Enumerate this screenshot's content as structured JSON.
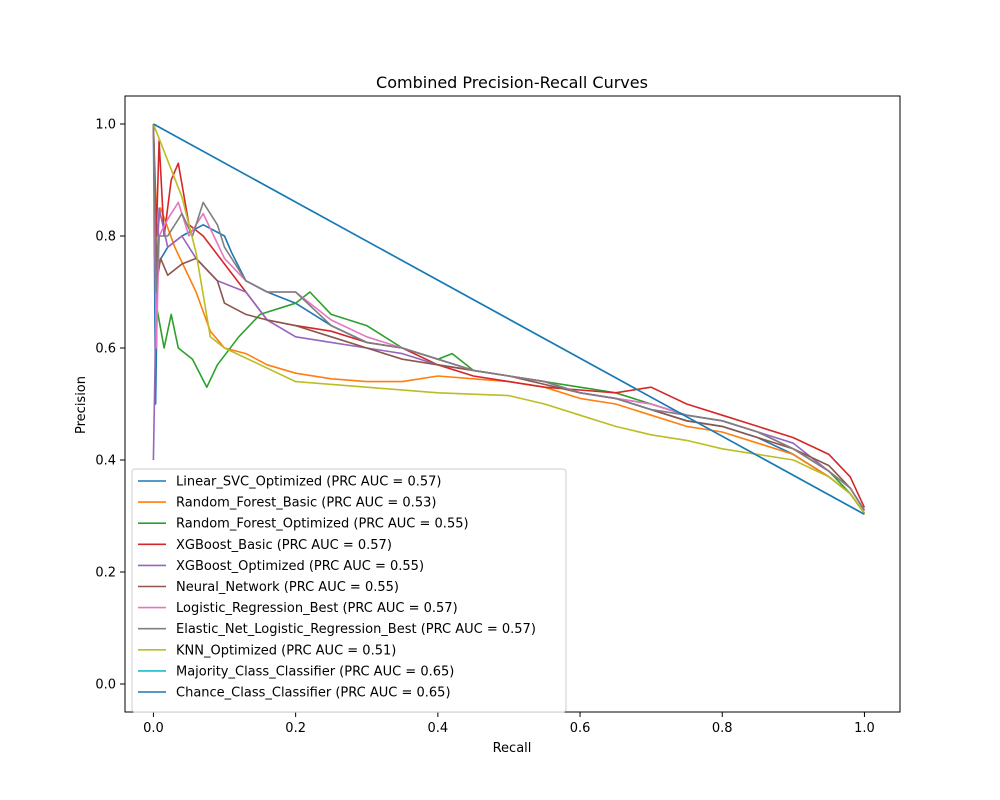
{
  "chart_data": {
    "type": "line",
    "title": "Combined Precision-Recall Curves",
    "xlabel": "Recall",
    "ylabel": "Precision",
    "xlim": [
      -0.04,
      1.05
    ],
    "ylim": [
      -0.05,
      1.05
    ],
    "xticks": [
      0.0,
      0.2,
      0.4,
      0.6,
      0.8,
      1.0
    ],
    "xtick_labels": [
      "0.0",
      "0.2",
      "0.4",
      "0.6",
      "0.8",
      "1.0"
    ],
    "yticks": [
      0.0,
      0.2,
      0.4,
      0.6,
      0.8,
      1.0
    ],
    "ytick_labels": [
      "0.0",
      "0.2",
      "0.4",
      "0.6",
      "0.8",
      "1.0"
    ],
    "grid": false,
    "legend_position": "lower-left",
    "series": [
      {
        "name": "Linear_SVC_Optimized (PRC AUC = 0.57)",
        "color": "#1f77b4",
        "points": [
          [
            0.0,
            1.0
          ],
          [
            0.003,
            0.5
          ],
          [
            0.006,
            0.75
          ],
          [
            0.02,
            0.78
          ],
          [
            0.04,
            0.8
          ],
          [
            0.07,
            0.82
          ],
          [
            0.1,
            0.8
          ],
          [
            0.11,
            0.77
          ],
          [
            0.13,
            0.72
          ],
          [
            0.16,
            0.7
          ],
          [
            0.2,
            0.68
          ],
          [
            0.25,
            0.64
          ],
          [
            0.3,
            0.61
          ],
          [
            0.35,
            0.6
          ],
          [
            0.4,
            0.58
          ],
          [
            0.45,
            0.56
          ],
          [
            0.5,
            0.55
          ],
          [
            0.55,
            0.54
          ],
          [
            0.6,
            0.52
          ],
          [
            0.65,
            0.51
          ],
          [
            0.7,
            0.49
          ],
          [
            0.75,
            0.47
          ],
          [
            0.8,
            0.46
          ],
          [
            0.85,
            0.44
          ],
          [
            0.9,
            0.41
          ],
          [
            0.95,
            0.37
          ],
          [
            0.98,
            0.34
          ],
          [
            1.0,
            0.305
          ]
        ]
      },
      {
        "name": "Random_Forest_Basic (PRC AUC = 0.53)",
        "color": "#ff7f0e",
        "points": [
          [
            0.0,
            1.0
          ],
          [
            0.005,
            0.8
          ],
          [
            0.01,
            0.85
          ],
          [
            0.03,
            0.78
          ],
          [
            0.06,
            0.7
          ],
          [
            0.08,
            0.63
          ],
          [
            0.1,
            0.6
          ],
          [
            0.13,
            0.59
          ],
          [
            0.16,
            0.57
          ],
          [
            0.2,
            0.555
          ],
          [
            0.25,
            0.545
          ],
          [
            0.3,
            0.54
          ],
          [
            0.35,
            0.54
          ],
          [
            0.4,
            0.55
          ],
          [
            0.45,
            0.545
          ],
          [
            0.5,
            0.54
          ],
          [
            0.55,
            0.53
          ],
          [
            0.6,
            0.51
          ],
          [
            0.65,
            0.5
          ],
          [
            0.7,
            0.48
          ],
          [
            0.75,
            0.46
          ],
          [
            0.8,
            0.45
          ],
          [
            0.85,
            0.43
          ],
          [
            0.9,
            0.41
          ],
          [
            0.95,
            0.37
          ],
          [
            0.98,
            0.34
          ],
          [
            1.0,
            0.305
          ]
        ]
      },
      {
        "name": "Random_Forest_Optimized (PRC AUC = 0.55)",
        "color": "#2ca02c",
        "points": [
          [
            0.0,
            1.0
          ],
          [
            0.005,
            0.67
          ],
          [
            0.015,
            0.6
          ],
          [
            0.025,
            0.66
          ],
          [
            0.035,
            0.6
          ],
          [
            0.055,
            0.58
          ],
          [
            0.075,
            0.53
          ],
          [
            0.09,
            0.57
          ],
          [
            0.12,
            0.62
          ],
          [
            0.15,
            0.66
          ],
          [
            0.2,
            0.68
          ],
          [
            0.22,
            0.7
          ],
          [
            0.25,
            0.66
          ],
          [
            0.3,
            0.64
          ],
          [
            0.35,
            0.6
          ],
          [
            0.4,
            0.58
          ],
          [
            0.42,
            0.59
          ],
          [
            0.45,
            0.56
          ],
          [
            0.5,
            0.55
          ],
          [
            0.55,
            0.54
          ],
          [
            0.6,
            0.53
          ],
          [
            0.65,
            0.52
          ],
          [
            0.7,
            0.5
          ],
          [
            0.75,
            0.48
          ],
          [
            0.8,
            0.47
          ],
          [
            0.85,
            0.45
          ],
          [
            0.9,
            0.42
          ],
          [
            0.95,
            0.38
          ],
          [
            0.98,
            0.34
          ],
          [
            1.0,
            0.305
          ]
        ]
      },
      {
        "name": "XGBoost_Basic (PRC AUC = 0.57)",
        "color": "#d62728",
        "points": [
          [
            0.0,
            1.0
          ],
          [
            0.004,
            0.8
          ],
          [
            0.008,
            0.97
          ],
          [
            0.015,
            0.8
          ],
          [
            0.025,
            0.9
          ],
          [
            0.035,
            0.93
          ],
          [
            0.05,
            0.82
          ],
          [
            0.07,
            0.8
          ],
          [
            0.1,
            0.75
          ],
          [
            0.13,
            0.7
          ],
          [
            0.16,
            0.65
          ],
          [
            0.2,
            0.64
          ],
          [
            0.25,
            0.63
          ],
          [
            0.3,
            0.61
          ],
          [
            0.35,
            0.6
          ],
          [
            0.4,
            0.57
          ],
          [
            0.45,
            0.55
          ],
          [
            0.5,
            0.54
          ],
          [
            0.55,
            0.53
          ],
          [
            0.6,
            0.525
          ],
          [
            0.65,
            0.52
          ],
          [
            0.7,
            0.53
          ],
          [
            0.75,
            0.5
          ],
          [
            0.8,
            0.48
          ],
          [
            0.85,
            0.46
          ],
          [
            0.9,
            0.44
          ],
          [
            0.95,
            0.41
          ],
          [
            0.98,
            0.37
          ],
          [
            1.0,
            0.315
          ]
        ]
      },
      {
        "name": "XGBoost_Optimized (PRC AUC = 0.55)",
        "color": "#9467bd",
        "points": [
          [
            0.0,
            0.4
          ],
          [
            0.004,
            0.7
          ],
          [
            0.008,
            0.85
          ],
          [
            0.02,
            0.78
          ],
          [
            0.04,
            0.8
          ],
          [
            0.06,
            0.76
          ],
          [
            0.09,
            0.72
          ],
          [
            0.13,
            0.7
          ],
          [
            0.16,
            0.65
          ],
          [
            0.2,
            0.62
          ],
          [
            0.25,
            0.61
          ],
          [
            0.3,
            0.6
          ],
          [
            0.35,
            0.59
          ],
          [
            0.4,
            0.57
          ],
          [
            0.45,
            0.56
          ],
          [
            0.5,
            0.55
          ],
          [
            0.55,
            0.54
          ],
          [
            0.6,
            0.52
          ],
          [
            0.65,
            0.51
          ],
          [
            0.7,
            0.5
          ],
          [
            0.75,
            0.48
          ],
          [
            0.8,
            0.47
          ],
          [
            0.85,
            0.45
          ],
          [
            0.9,
            0.43
          ],
          [
            0.95,
            0.38
          ],
          [
            0.98,
            0.35
          ],
          [
            1.0,
            0.31
          ]
        ]
      },
      {
        "name": "Neural_Network (PRC AUC = 0.55)",
        "color": "#8c564b",
        "points": [
          [
            0.0,
            1.0
          ],
          [
            0.005,
            0.72
          ],
          [
            0.01,
            0.76
          ],
          [
            0.02,
            0.73
          ],
          [
            0.04,
            0.75
          ],
          [
            0.06,
            0.76
          ],
          [
            0.09,
            0.72
          ],
          [
            0.1,
            0.68
          ],
          [
            0.13,
            0.66
          ],
          [
            0.16,
            0.65
          ],
          [
            0.2,
            0.64
          ],
          [
            0.25,
            0.62
          ],
          [
            0.3,
            0.6
          ],
          [
            0.35,
            0.58
          ],
          [
            0.4,
            0.57
          ],
          [
            0.45,
            0.56
          ],
          [
            0.5,
            0.55
          ],
          [
            0.55,
            0.535
          ],
          [
            0.6,
            0.52
          ],
          [
            0.65,
            0.51
          ],
          [
            0.7,
            0.49
          ],
          [
            0.75,
            0.47
          ],
          [
            0.8,
            0.46
          ],
          [
            0.85,
            0.44
          ],
          [
            0.9,
            0.42
          ],
          [
            0.95,
            0.39
          ],
          [
            0.98,
            0.35
          ],
          [
            1.0,
            0.31
          ]
        ]
      },
      {
        "name": "Logistic_Regression_Best (PRC AUC = 0.57)",
        "color": "#e377c2",
        "points": [
          [
            0.0,
            1.0
          ],
          [
            0.004,
            0.6
          ],
          [
            0.008,
            0.8
          ],
          [
            0.02,
            0.83
          ],
          [
            0.035,
            0.86
          ],
          [
            0.05,
            0.8
          ],
          [
            0.07,
            0.84
          ],
          [
            0.1,
            0.76
          ],
          [
            0.13,
            0.72
          ],
          [
            0.16,
            0.7
          ],
          [
            0.2,
            0.7
          ],
          [
            0.25,
            0.65
          ],
          [
            0.3,
            0.62
          ],
          [
            0.35,
            0.6
          ],
          [
            0.4,
            0.58
          ],
          [
            0.45,
            0.56
          ],
          [
            0.5,
            0.55
          ],
          [
            0.55,
            0.54
          ],
          [
            0.6,
            0.52
          ],
          [
            0.65,
            0.51
          ],
          [
            0.7,
            0.5
          ],
          [
            0.75,
            0.48
          ],
          [
            0.8,
            0.47
          ],
          [
            0.85,
            0.45
          ],
          [
            0.9,
            0.42
          ],
          [
            0.95,
            0.38
          ],
          [
            0.98,
            0.35
          ],
          [
            1.0,
            0.31
          ]
        ]
      },
      {
        "name": "Elastic_Net_Logistic_Regression_Best (PRC AUC = 0.57)",
        "color": "#7f7f7f",
        "points": [
          [
            0.0,
            1.0
          ],
          [
            0.004,
            0.7
          ],
          [
            0.008,
            0.8
          ],
          [
            0.02,
            0.8
          ],
          [
            0.04,
            0.84
          ],
          [
            0.055,
            0.8
          ],
          [
            0.07,
            0.86
          ],
          [
            0.09,
            0.82
          ],
          [
            0.1,
            0.78
          ],
          [
            0.13,
            0.72
          ],
          [
            0.16,
            0.7
          ],
          [
            0.2,
            0.7
          ],
          [
            0.25,
            0.64
          ],
          [
            0.3,
            0.61
          ],
          [
            0.35,
            0.6
          ],
          [
            0.4,
            0.58
          ],
          [
            0.45,
            0.56
          ],
          [
            0.5,
            0.55
          ],
          [
            0.55,
            0.54
          ],
          [
            0.6,
            0.52
          ],
          [
            0.65,
            0.51
          ],
          [
            0.7,
            0.49
          ],
          [
            0.75,
            0.48
          ],
          [
            0.8,
            0.47
          ],
          [
            0.85,
            0.45
          ],
          [
            0.9,
            0.42
          ],
          [
            0.95,
            0.38
          ],
          [
            0.98,
            0.35
          ],
          [
            1.0,
            0.31
          ]
        ]
      },
      {
        "name": "KNN_Optimized (PRC AUC = 0.51)",
        "color": "#bcbd22",
        "points": [
          [
            0.0,
            1.0
          ],
          [
            0.04,
            0.87
          ],
          [
            0.06,
            0.77
          ],
          [
            0.08,
            0.62
          ],
          [
            0.1,
            0.6
          ],
          [
            0.15,
            0.57
          ],
          [
            0.2,
            0.54
          ],
          [
            0.3,
            0.53
          ],
          [
            0.4,
            0.52
          ],
          [
            0.5,
            0.515
          ],
          [
            0.55,
            0.5
          ],
          [
            0.6,
            0.48
          ],
          [
            0.65,
            0.46
          ],
          [
            0.7,
            0.445
          ],
          [
            0.75,
            0.435
          ],
          [
            0.8,
            0.42
          ],
          [
            0.85,
            0.41
          ],
          [
            0.9,
            0.4
          ],
          [
            0.95,
            0.37
          ],
          [
            0.98,
            0.34
          ],
          [
            1.0,
            0.305
          ]
        ]
      },
      {
        "name": "Majority_Class_Classifier (PRC AUC = 0.65)",
        "color": "#17becf",
        "points": [
          [
            0.0,
            1.0
          ],
          [
            1.0,
            0.303
          ]
        ]
      },
      {
        "name": "Chance_Class_Classifier (PRC AUC = 0.65)",
        "color": "#1f77b4",
        "points": [
          [
            0.0,
            1.0
          ],
          [
            1.0,
            0.303
          ]
        ]
      }
    ]
  }
}
